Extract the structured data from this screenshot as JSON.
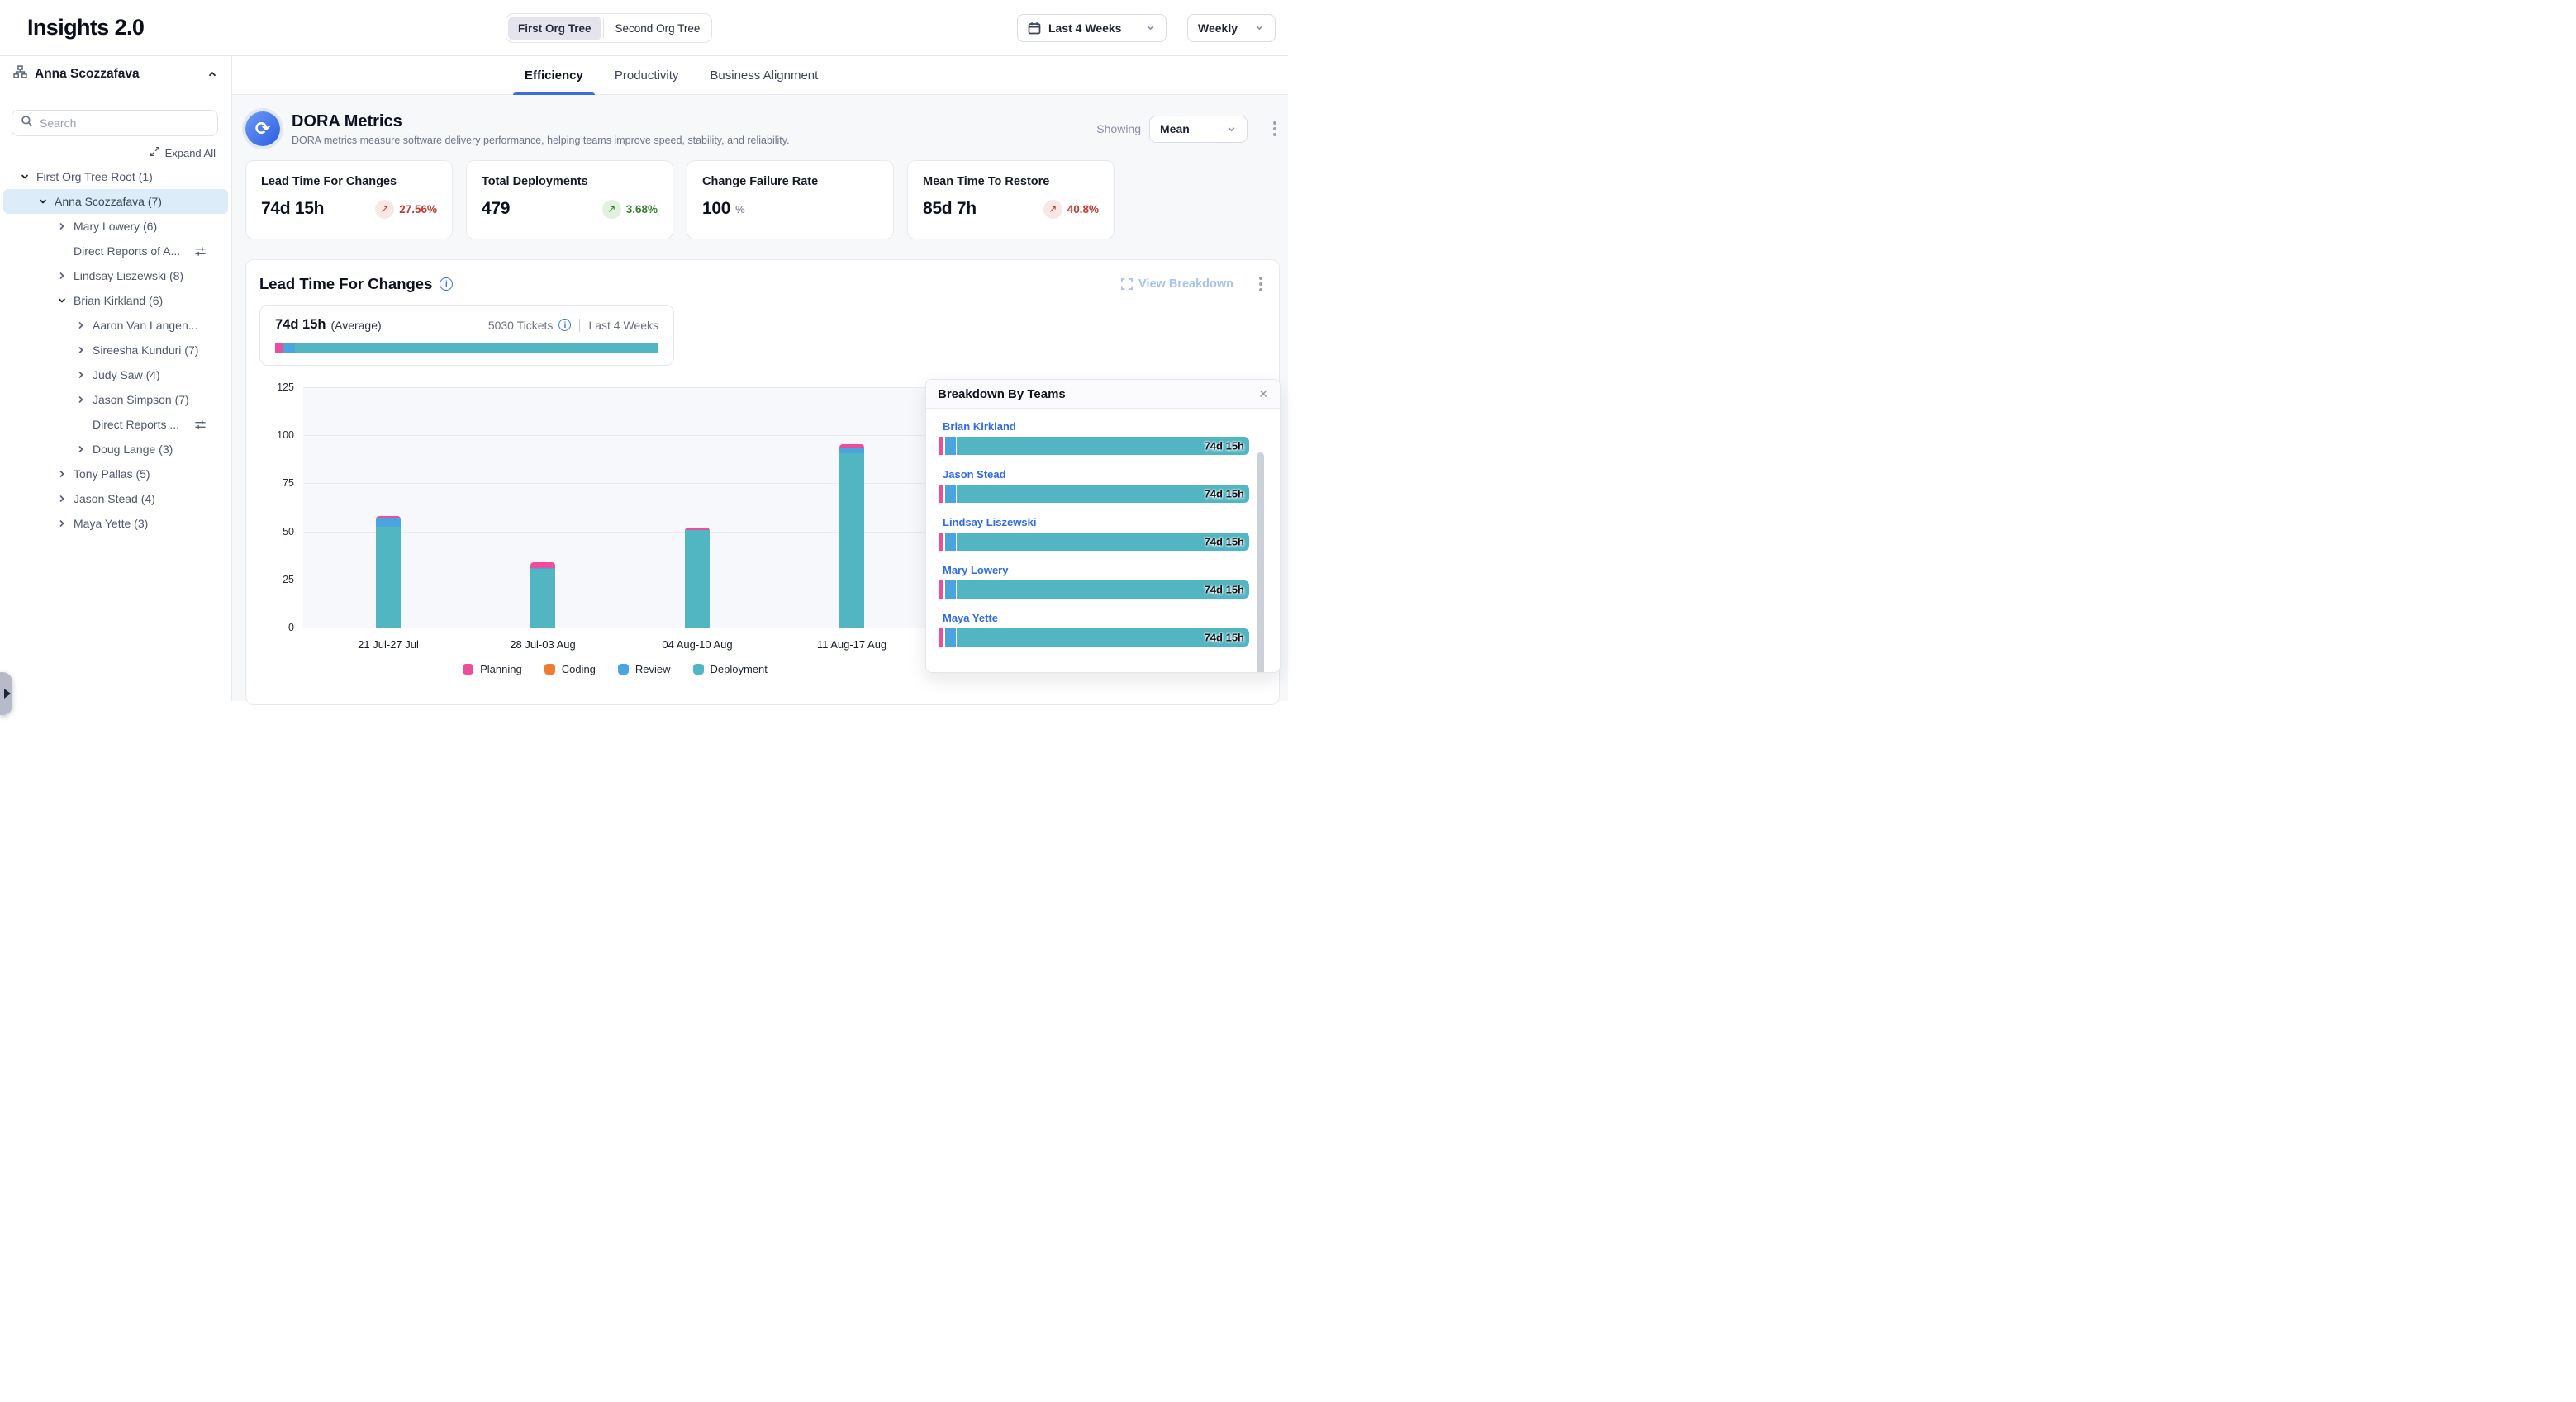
{
  "header": {
    "title": "Insights 2.0",
    "org_toggle": {
      "options": [
        "First Org Tree",
        "Second Org Tree"
      ],
      "selected": 0
    },
    "date_range": "Last 4 Weeks",
    "granularity": "Weekly"
  },
  "sidebar": {
    "owner": "Anna Scozzafava",
    "search_placeholder": "Search",
    "expand_all": "Expand All",
    "tree": [
      {
        "label": "First Org Tree Root (1)",
        "level": 0,
        "chevron": "down",
        "selected": false,
        "filter_icon": false
      },
      {
        "label": "Anna Scozzafava (7)",
        "level": 1,
        "chevron": "down",
        "selected": true,
        "filter_icon": false
      },
      {
        "label": "Mary Lowery (6)",
        "level": 2,
        "chevron": "right",
        "selected": false,
        "filter_icon": false
      },
      {
        "label": "Direct Reports of A...",
        "level": 2,
        "chevron": "none",
        "selected": false,
        "filter_icon": true
      },
      {
        "label": "Lindsay Liszewski (8)",
        "level": 2,
        "chevron": "right",
        "selected": false,
        "filter_icon": false
      },
      {
        "label": "Brian Kirkland (6)",
        "level": 2,
        "chevron": "down",
        "selected": false,
        "filter_icon": false
      },
      {
        "label": "Aaron Van Langen...",
        "level": 3,
        "chevron": "right",
        "selected": false,
        "filter_icon": false
      },
      {
        "label": "Sireesha Kunduri (7)",
        "level": 3,
        "chevron": "right",
        "selected": false,
        "filter_icon": false
      },
      {
        "label": "Judy Saw (4)",
        "level": 3,
        "chevron": "right",
        "selected": false,
        "filter_icon": false
      },
      {
        "label": "Jason Simpson (7)",
        "level": 3,
        "chevron": "right",
        "selected": false,
        "filter_icon": false
      },
      {
        "label": "Direct Reports ...",
        "level": 3,
        "chevron": "none",
        "selected": false,
        "filter_icon": true
      },
      {
        "label": "Doug Lange (3)",
        "level": 3,
        "chevron": "right",
        "selected": false,
        "filter_icon": false
      },
      {
        "label": "Tony Pallas (5)",
        "level": 2,
        "chevron": "right",
        "selected": false,
        "filter_icon": false
      },
      {
        "label": "Jason Stead (4)",
        "level": 2,
        "chevron": "right",
        "selected": false,
        "filter_icon": false
      },
      {
        "label": "Maya Yette (3)",
        "level": 2,
        "chevron": "right",
        "selected": false,
        "filter_icon": false
      }
    ]
  },
  "tabs": {
    "items": [
      "Efficiency",
      "Productivity",
      "Business Alignment"
    ],
    "active": 0
  },
  "dora": {
    "title": "DORA Metrics",
    "subtitle": "DORA metrics measure software delivery performance, helping teams improve speed, stability, and reliability.",
    "showing_label": "Showing",
    "showing_value": "Mean",
    "cards": [
      {
        "title": "Lead Time For Changes",
        "value": "74d 15h",
        "unit": "",
        "delta": "27.56%",
        "trend": "up",
        "tone": "bad"
      },
      {
        "title": "Total Deployments",
        "value": "479",
        "unit": "",
        "delta": "3.68%",
        "trend": "up",
        "tone": "good"
      },
      {
        "title": "Change Failure Rate",
        "value": "100",
        "unit": "%",
        "delta": "",
        "trend": "",
        "tone": ""
      },
      {
        "title": "Mean Time To Restore",
        "value": "85d 7h",
        "unit": "",
        "delta": "40.8%",
        "trend": "up",
        "tone": "bad"
      }
    ]
  },
  "lead_time": {
    "title": "Lead Time For Changes",
    "view_breakdown": "View Breakdown",
    "average_value": "74d 15h",
    "average_label": "(Average)",
    "tickets": "5030 Tickets",
    "period": "Last 4 Weeks",
    "summary_bar": [
      {
        "name": "planning",
        "color": "#EC4E9B",
        "pct": 2.0
      },
      {
        "name": "review",
        "color": "#4AA4E0",
        "pct": 3.2
      },
      {
        "name": "deployment",
        "color": "#52B6C2",
        "pct": 94.8
      }
    ]
  },
  "chart_data": {
    "type": "bar",
    "stacked": true,
    "title": "Lead Time For Changes",
    "categories": [
      "21 Jul-27 Jul",
      "28 Jul-03 Aug",
      "04 Aug-10 Aug",
      "11 Aug-17 Aug"
    ],
    "series": [
      {
        "name": "Planning",
        "color": "#EC4E9B",
        "values": [
          0.8,
          3.0,
          1.2,
          2.5
        ]
      },
      {
        "name": "Coding",
        "color": "#ED7D31",
        "values": [
          0,
          0,
          0,
          0
        ]
      },
      {
        "name": "Review",
        "color": "#4AA4E0",
        "values": [
          4.5,
          0.5,
          0.3,
          2.5
        ]
      },
      {
        "name": "Deployment",
        "color": "#52B6C2",
        "values": [
          53,
          31,
          51,
          91
        ]
      }
    ],
    "totals": [
      58.3,
      34.5,
      52.5,
      96
    ],
    "ylim": [
      0,
      125
    ],
    "yticks": [
      0,
      25,
      50,
      75,
      100,
      125
    ],
    "grid": true,
    "legend_position": "bottom"
  },
  "breakdown": {
    "title": "Breakdown By Teams",
    "bar_segments": [
      {
        "name": "planning",
        "color": "#EC4E9B",
        "width": 5
      },
      {
        "name": "review",
        "color": "#4AA4E0",
        "width": 13
      }
    ],
    "teal": "#52B6C2",
    "teams": [
      {
        "name": "Brian Kirkland",
        "value": "74d 15h"
      },
      {
        "name": "Jason Stead",
        "value": "74d 15h"
      },
      {
        "name": "Lindsay Liszewski",
        "value": "74d 15h"
      },
      {
        "name": "Mary Lowery",
        "value": "74d 15h"
      },
      {
        "name": "Maya Yette",
        "value": "74d 15h"
      }
    ]
  }
}
